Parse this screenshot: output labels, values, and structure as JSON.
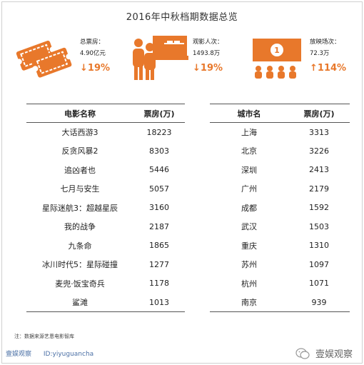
{
  "title": "2016年中秋档期数据总览",
  "stats": [
    {
      "label": "总票房：",
      "value": "4.90亿元",
      "change": "↓19%",
      "icon": "ticket-icon"
    },
    {
      "label": "观影人次：",
      "value": "1493.8万",
      "change": "↓19%",
      "icon": "audience-icon"
    },
    {
      "label": "放映场次：",
      "value": "72.3万",
      "change": "↑114%",
      "icon": "cinema-screen-icon",
      "screen_number": "1"
    }
  ],
  "films_table": {
    "headers": [
      "电影名称",
      "票房(万)"
    ],
    "rows": [
      [
        "大话西游3",
        "18223"
      ],
      [
        "反贪风暴2",
        "8303"
      ],
      [
        "追凶者也",
        "5446"
      ],
      [
        "七月与安生",
        "5057"
      ],
      [
        "星际迷航3：超越星辰",
        "3160"
      ],
      [
        "我的战争",
        "2187"
      ],
      [
        "九条命",
        "1865"
      ],
      [
        "冰川时代5：星际碰撞",
        "1277"
      ],
      [
        "麦兜·饭宝奇兵",
        "1178"
      ],
      [
        "鲨滩",
        "1013"
      ]
    ]
  },
  "cities_table": {
    "headers": [
      "城市名",
      "票房(万)"
    ],
    "rows": [
      [
        "上海",
        "3313"
      ],
      [
        "北京",
        "3226"
      ],
      [
        "深圳",
        "2413"
      ],
      [
        "广州",
        "2179"
      ],
      [
        "成都",
        "1592"
      ],
      [
        "武汉",
        "1503"
      ],
      [
        "重庆",
        "1310"
      ],
      [
        "苏州",
        "1097"
      ],
      [
        "杭州",
        "1071"
      ],
      [
        "南京",
        "939"
      ]
    ]
  },
  "note": "注：数据来源艺恩电影智库",
  "brand": {
    "left_name": "壹娱观察",
    "left_id": "ID:yiyuguancha",
    "right_name": "壹娱观察"
  },
  "colors": {
    "accent": "#e8782b",
    "brand_blue": "#4a6fa5"
  }
}
